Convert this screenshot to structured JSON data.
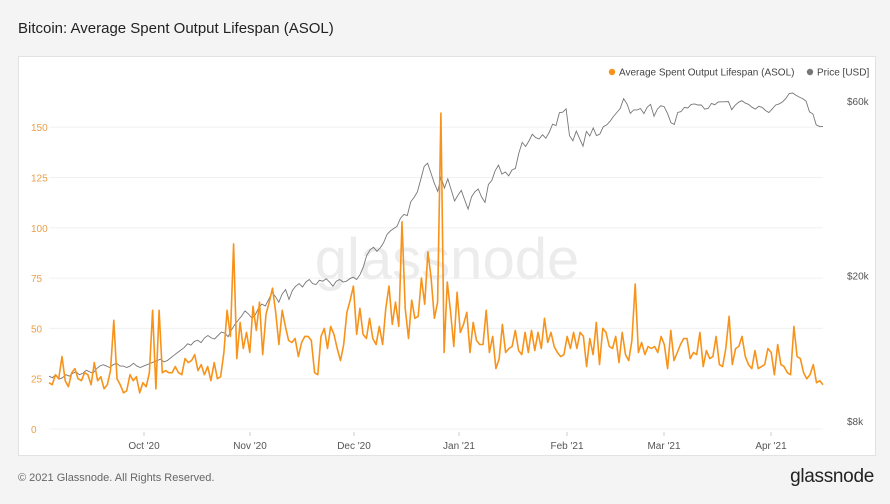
{
  "page": {
    "title": "Bitcoin: Average Spent Output Lifespan (ASOL)",
    "copyright": "© 2021 Glassnode. All Rights Reserved.",
    "brand": "glassnode",
    "watermark": "glassnode"
  },
  "colors": {
    "asol": "#f7931a",
    "price": "#777777",
    "axis_left": "#e8a04a",
    "axis_right": "#555555"
  },
  "chart_data": {
    "type": "line",
    "title": "Bitcoin: Average Spent Output Lifespan (ASOL)",
    "legend_position": "top-right",
    "x_ticks": [
      "Oct '20",
      "Nov '20",
      "Dec '20",
      "Jan '21",
      "Feb '21",
      "Mar '21",
      "Apr '21"
    ],
    "y_left": {
      "ticks": [
        "0",
        "25",
        "50",
        "75",
        "100",
        "125",
        "150"
      ],
      "range": [
        0,
        165
      ]
    },
    "y_right": {
      "ticks": [
        "$8k",
        "$20k",
        "$60k"
      ],
      "scale": "log"
    },
    "series": [
      {
        "name": "Average Spent Output Lifespan (ASOL)",
        "axis": "left",
        "values": [
          23,
          22,
          27,
          25,
          36,
          24,
          21,
          28,
          30,
          25,
          24,
          28,
          27,
          22,
          33,
          24,
          26,
          20,
          22,
          29,
          54,
          25,
          22,
          18,
          19,
          27,
          24,
          26,
          18,
          23,
          21,
          28,
          59,
          20,
          59,
          28,
          29,
          28,
          28,
          31,
          28,
          27,
          35,
          33,
          34,
          37,
          29,
          32,
          27,
          31,
          24,
          33,
          25,
          26,
          38,
          59,
          46,
          92,
          35,
          53,
          40,
          48,
          38,
          61,
          49,
          63,
          37,
          57,
          63,
          70,
          58,
          42,
          59,
          51,
          44,
          43,
          45,
          36,
          43,
          46,
          46,
          44,
          28,
          27,
          46,
          50,
          40,
          51,
          47,
          40,
          34,
          42,
          58,
          64,
          71,
          47,
          60,
          47,
          45,
          55,
          45,
          42,
          51,
          42,
          60,
          71,
          52,
          63,
          51,
          103,
          60,
          45,
          64,
          55,
          56,
          75,
          62,
          88,
          75,
          55,
          63,
          157,
          38,
          73,
          58,
          41,
          68,
          48,
          52,
          58,
          38,
          53,
          44,
          42,
          42,
          59,
          38,
          46,
          30,
          35,
          52,
          38,
          40,
          41,
          49,
          39,
          37,
          48,
          38,
          49,
          39,
          48,
          40,
          55,
          43,
          48,
          41,
          38,
          36,
          37,
          46,
          40,
          48,
          40,
          48,
          46,
          31,
          45,
          37,
          53,
          32,
          50,
          48,
          41,
          40,
          46,
          33,
          48,
          37,
          34,
          44,
          72,
          38,
          43,
          37,
          41,
          40,
          41,
          38,
          46,
          42,
          30,
          49,
          34,
          38,
          42,
          45,
          45,
          35,
          38,
          37,
          48,
          31,
          39,
          35,
          36,
          46,
          32,
          31,
          40,
          56,
          32,
          40,
          41,
          46,
          36,
          32,
          30,
          39,
          30,
          31,
          32,
          40,
          38,
          27,
          42,
          32,
          31,
          28,
          27,
          51,
          36,
          35,
          28,
          25,
          27,
          32,
          23,
          24,
          22
        ]
      },
      {
        "name": "Price [USD]",
        "axis": "right",
        "values": [
          10600,
          10500,
          10700,
          10400,
          10500,
          10700,
          10600,
          10800,
          10900,
          10700,
          10800,
          11000,
          10900,
          10800,
          11100,
          11300,
          11400,
          11300,
          11200,
          11400,
          11500,
          11300,
          11300,
          11200,
          11300,
          11500,
          11300,
          11200,
          11300,
          11400,
          11500,
          11600,
          11700,
          11800,
          11600,
          11700,
          11900,
          12100,
          12300,
          12500,
          12700,
          13000,
          12900,
          13200,
          13300,
          13100,
          13500,
          13700,
          13500,
          13400,
          13700,
          14000,
          13900,
          13600,
          14200,
          14700,
          15100,
          15500,
          16000,
          15700,
          15300,
          15600,
          16300,
          16700,
          16500,
          17200,
          18000,
          17500,
          16900,
          17800,
          18300,
          17200,
          18200,
          18700,
          19000,
          18600,
          19200,
          19500,
          19000,
          18900,
          19400,
          19300,
          19600,
          19200,
          18700,
          19300,
          19500,
          19200,
          19300,
          19600,
          19800,
          19500,
          20100,
          21100,
          22700,
          23500,
          23900,
          23300,
          23800,
          24600,
          25900,
          26500,
          26900,
          27300,
          28700,
          29400,
          29200,
          31800,
          32700,
          33900,
          36700,
          39800,
          40600,
          38200,
          35800,
          34000,
          37200,
          34700,
          36800,
          34300,
          32000,
          33200,
          34200,
          32200,
          30400,
          32800,
          33900,
          34500,
          32800,
          31700,
          35500,
          36400,
          38700,
          40100,
          37900,
          38400,
          37500,
          38900,
          39300,
          43200,
          46300,
          45100,
          46700,
          48700,
          47700,
          47300,
          48600,
          47500,
          49300,
          51900,
          51500,
          55800,
          56000,
          57200,
          48300,
          46800,
          49700,
          47400,
          45200,
          49600,
          48200,
          50700,
          48300,
          48800,
          51100,
          51700,
          52900,
          54500,
          55900,
          57300,
          61000,
          59000,
          55600,
          56800,
          56800,
          57300,
          55500,
          57800,
          58800,
          54600,
          57100,
          58300,
          58000,
          55600,
          52400,
          51800,
          55900,
          56200,
          57700,
          57500,
          58800,
          59000,
          58600,
          58600,
          57100,
          57300,
          59200,
          58700,
          59700,
          59800,
          59800,
          59900,
          56900,
          58500,
          59600,
          60200,
          59300,
          58800,
          57800,
          57100,
          58100,
          57700,
          56600,
          55900,
          57200,
          58600,
          59000,
          59700,
          61000,
          63000,
          63200,
          62300,
          61600,
          61000,
          60000,
          56100,
          55400,
          51700,
          51200,
          51200
        ]
      }
    ]
  },
  "legend": {
    "asol": "Average Spent Output Lifespan (ASOL)",
    "price": "Price [USD]"
  }
}
